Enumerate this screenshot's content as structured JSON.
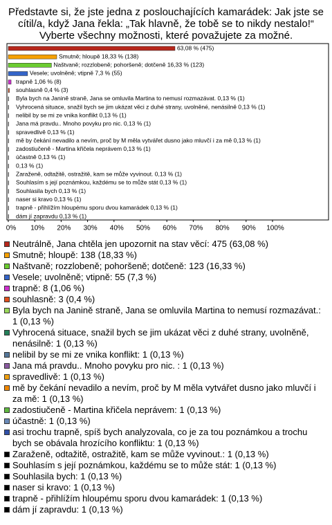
{
  "chart_data": {
    "type": "hbar",
    "title": [
      "Představte si, že jste jedna z poslouchajících kamarádek: Jak jste se",
      "cítil/a, když Jana řekla: „Tak hlavně, že tobě se to nikdy nestalo!“",
      "Vyberte všechny možnosti, které považujete za možné."
    ],
    "categories": [
      "Neutrálně, Jana chtěla jen upozornit na stav věcí: 475 (63,08 %)",
      "Smutně; hloupě: 138 (18,33 %)",
      "Naštvaně; rozzlobeně; pohoršeně; dotčeně: 123 (16,33 %)",
      "Vesele; uvolněně; vtipně: 55 (7,3 %)",
      "trapně: 8 (1,06 %)",
      "souhlasně: 3 (0,4 %)",
      "Byla bych na Janině straně, Jana se omluvila Martina to nemusí rozmazávat.: 1 (0,13 %)",
      "Vyhrocená situace, snažil bych se jim ukázat věci z duhé strany, uvolněně, nenásilně: 1 (0,13 %)",
      "nelibil by se mi ze vnika konflikt: 1 (0,13 %)",
      "Jana má pravdu.. Mnoho povyku pro nic. : 1 (0,13 %)",
      "spravedlivě: 1 (0,13 %)",
      "mě by čekání nevadilo a nevím, proč by M měla vytvářet dusno jako mluvčí i za mě: 1 (0,13 %)",
      "zadostiučeně - Martina křičela neprávem: 1 (0,13 %)",
      "účastně: 1 (0,13 %)",
      "asi trochu trapně, spíš bych analyzovala, co je za tou poznámkou a trochu bych se obávala hrozícího konfliktu: 1 (0,13 %)",
      "Zaraženě, odtažitě, ostražitě, kam se může vyvinout.: 1 (0,13 %)",
      "Souhlasím s její poznámkou, každému se to může stát: 1 (0,13 %)",
      "Souhlasila bych: 1 (0,13 %)",
      "naser si kravo: 1 (0,13 %)",
      "trapně - přihlížím hloupému sporu dvou kamarádek: 1 (0,13 %)",
      "dám jí zapravdu: 1 (0,13 %)"
    ],
    "values": [
      63.08,
      18.33,
      16.33,
      7.3,
      1.06,
      0.4,
      0.13,
      0.13,
      0.13,
      0.13,
      0.13,
      0.13,
      0.13,
      0.13,
      0.13,
      0.13,
      0.13,
      0.13,
      0.13,
      0.13,
      0.13
    ],
    "value_labels": [
      "63,08 % (475)",
      "Smutně; hloupě 18,33 % (138)",
      "Naštvaně; rozzlobeně; pohoršeně; dotčeně 16,33 % (123)",
      "Vesele; uvolněně; vtipně 7,3 % (55)",
      "trapně 1,06 % (8)",
      "souhlasně 0,4 % (3)",
      "Byla bych na Janině straně, Jana se omluvila Martina to nemusí rozmazávat. 0,13 % (1)",
      "Vyhrocená situace, snažil bych se jim ukázat věci z duhé strany, uvolněné, nenásilně 0,13 % (1)",
      "nelibil by se mi ze vnika konflikt 0,13 % (1)",
      "Jana má pravdu.. Mnoho povyku pro nic.  0,13 % (1)",
      "spravedlivě 0,13 % (1)",
      "mě by čekání nevadilo a nevím, proč by M měla vytvářet dusno jako mluvčí i za mě 0,13 % (1)",
      "zadostiučeně - Martina křičela neprávem 0,13 % (1)",
      "účastně 0,13 % (1)",
      "0,13 % (1)",
      "Zaraženě, odtažitě, ostražitě, kam se může vyvinout. 0,13 % (1)",
      "Souhlasím s její poznámkou, každému se to může stát 0,13 % (1)",
      "Souhlasila bych 0,13 % (1)",
      "naser si kravo 0,13 % (1)",
      "trapně - přihlížím hloupému sporu dvou kamarádek 0,13 % (1)",
      "dám jí zapravdu 0,13 % (1)"
    ],
    "colors": [
      "#b8281c",
      "#f5a000",
      "#6ccc30",
      "#3464c8",
      "#cc30cc",
      "#e0501c",
      "#9ad85a",
      "#23805a",
      "#557799",
      "#8a5aa0",
      "#f0a010",
      "#f08800",
      "#60b840",
      "#6a8ab8",
      "#3050a8",
      "#000000",
      "#000000",
      "#000000",
      "#000000",
      "#000000",
      "#000000"
    ],
    "xlim": [
      0,
      100
    ],
    "xticks": [
      {
        "value": 0,
        "label": "0%"
      },
      {
        "value": 10,
        "label": "10%"
      },
      {
        "value": 20,
        "label": "20%"
      },
      {
        "value": 30,
        "label": "30%"
      },
      {
        "value": 40,
        "label": "40%"
      },
      {
        "value": 50,
        "label": "50%"
      },
      {
        "value": 60,
        "label": "60%"
      },
      {
        "value": 70,
        "label": "70%"
      },
      {
        "value": 80,
        "label": "80%"
      },
      {
        "value": 90,
        "label": "90%"
      },
      {
        "value": 100,
        "label": "100%"
      }
    ]
  }
}
